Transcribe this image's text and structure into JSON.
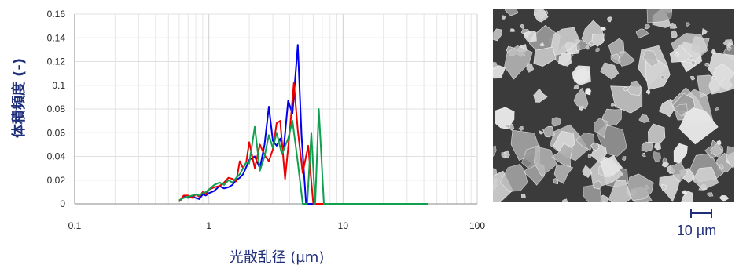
{
  "chart_data": {
    "type": "line",
    "xlabel": "光散乱径 (µm)",
    "ylabel": "体積頻度 (-)",
    "xscale": "log",
    "xlim": [
      0.1,
      100
    ],
    "ylim": [
      0,
      0.16
    ],
    "x_ticks": [
      "0.1",
      "1",
      "10",
      "100"
    ],
    "y_ticks": [
      "0",
      "0.02",
      "0.04",
      "0.06",
      "0.08",
      "0.1",
      "0.12",
      "0.14",
      "0.16"
    ],
    "grid": true,
    "legend": "none",
    "series": [
      {
        "color": "#0000ee",
        "points": [
          [
            0.6,
            0.002
          ],
          [
            0.65,
            0.006
          ],
          [
            0.7,
            0.005
          ],
          [
            0.75,
            0.006
          ],
          [
            0.8,
            0.005
          ],
          [
            0.85,
            0.004
          ],
          [
            0.9,
            0.008
          ],
          [
            0.95,
            0.007
          ],
          [
            1.0,
            0.009
          ],
          [
            1.1,
            0.011
          ],
          [
            1.2,
            0.015
          ],
          [
            1.3,
            0.013
          ],
          [
            1.4,
            0.014
          ],
          [
            1.5,
            0.016
          ],
          [
            1.6,
            0.02
          ],
          [
            1.7,
            0.022
          ],
          [
            1.8,
            0.025
          ],
          [
            1.9,
            0.031
          ],
          [
            2.0,
            0.037
          ],
          [
            2.2,
            0.04
          ],
          [
            2.4,
            0.03
          ],
          [
            2.6,
            0.05
          ],
          [
            2.8,
            0.082
          ],
          [
            3.0,
            0.053
          ],
          [
            3.2,
            0.049
          ],
          [
            3.4,
            0.055
          ],
          [
            3.6,
            0.045
          ],
          [
            3.9,
            0.087
          ],
          [
            4.2,
            0.076
          ],
          [
            4.6,
            0.134
          ],
          [
            4.9,
            0.058
          ],
          [
            5.3,
            0.0
          ],
          [
            43,
            0.0
          ]
        ]
      },
      {
        "color": "#ee0000",
        "points": [
          [
            0.6,
            0.002
          ],
          [
            0.65,
            0.007
          ],
          [
            0.7,
            0.007
          ],
          [
            0.75,
            0.005
          ],
          [
            0.8,
            0.008
          ],
          [
            0.85,
            0.006
          ],
          [
            0.9,
            0.01
          ],
          [
            0.95,
            0.008
          ],
          [
            1.0,
            0.012
          ],
          [
            1.1,
            0.014
          ],
          [
            1.2,
            0.015
          ],
          [
            1.3,
            0.018
          ],
          [
            1.4,
            0.022
          ],
          [
            1.5,
            0.021
          ],
          [
            1.6,
            0.019
          ],
          [
            1.7,
            0.036
          ],
          [
            1.8,
            0.03
          ],
          [
            1.9,
            0.035
          ],
          [
            2.0,
            0.052
          ],
          [
            2.2,
            0.03
          ],
          [
            2.4,
            0.05
          ],
          [
            2.6,
            0.041
          ],
          [
            2.8,
            0.036
          ],
          [
            3.0,
            0.046
          ],
          [
            3.2,
            0.068
          ],
          [
            3.4,
            0.07
          ],
          [
            3.7,
            0.021
          ],
          [
            4.0,
            0.06
          ],
          [
            4.3,
            0.102
          ],
          [
            4.6,
            0.062
          ],
          [
            5.0,
            0.026
          ],
          [
            5.5,
            0.049
          ],
          [
            6.0,
            0.0
          ],
          [
            43,
            0.0
          ]
        ]
      },
      {
        "color": "#10a050",
        "points": [
          [
            0.6,
            0.003
          ],
          [
            0.65,
            0.005
          ],
          [
            0.7,
            0.006
          ],
          [
            0.75,
            0.007
          ],
          [
            0.8,
            0.008
          ],
          [
            0.85,
            0.007
          ],
          [
            0.9,
            0.009
          ],
          [
            0.95,
            0.01
          ],
          [
            1.0,
            0.012
          ],
          [
            1.1,
            0.016
          ],
          [
            1.2,
            0.018
          ],
          [
            1.3,
            0.016
          ],
          [
            1.4,
            0.02
          ],
          [
            1.5,
            0.018
          ],
          [
            1.6,
            0.022
          ],
          [
            1.7,
            0.025
          ],
          [
            1.8,
            0.03
          ],
          [
            1.9,
            0.035
          ],
          [
            2.0,
            0.034
          ],
          [
            2.2,
            0.065
          ],
          [
            2.4,
            0.028
          ],
          [
            2.6,
            0.04
          ],
          [
            2.8,
            0.058
          ],
          [
            3.0,
            0.047
          ],
          [
            3.2,
            0.06
          ],
          [
            3.5,
            0.042
          ],
          [
            3.9,
            0.055
          ],
          [
            4.2,
            0.07
          ],
          [
            4.6,
            0.035
          ],
          [
            5.0,
            0.0
          ],
          [
            5.4,
            0.0
          ],
          [
            5.8,
            0.06
          ],
          [
            6.2,
            0.0
          ],
          [
            6.6,
            0.08
          ],
          [
            7.2,
            0.0
          ],
          [
            43,
            0.0
          ]
        ]
      }
    ]
  },
  "sem_image": {
    "scale_label": "10 µm"
  }
}
